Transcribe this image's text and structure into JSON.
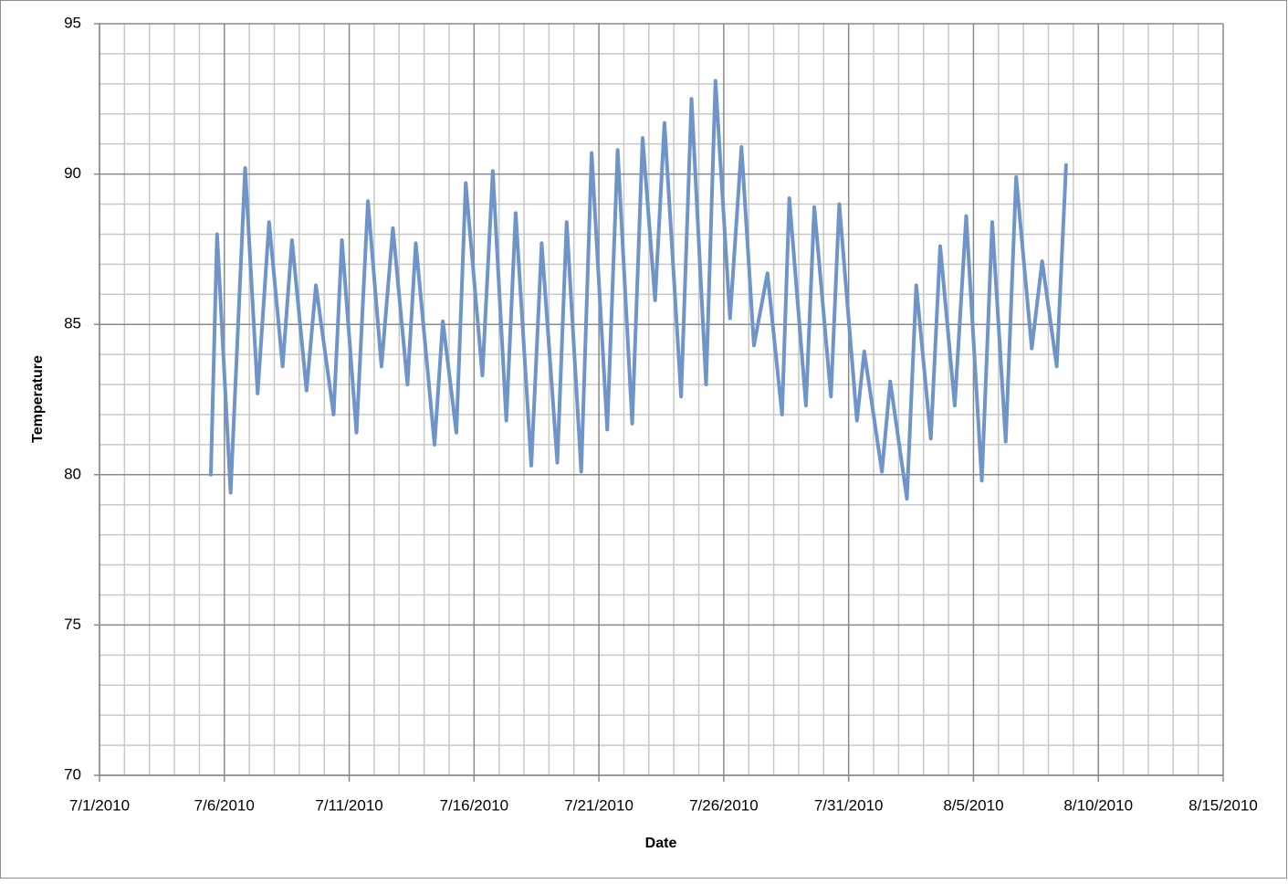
{
  "chart_data": {
    "type": "line",
    "x_label": "Date",
    "y_label": "Temperature",
    "xlim": [
      "2010-07-01T00:00",
      "2010-08-15T00:00"
    ],
    "xticks": [
      {
        "value": "2010-07-01T00:00",
        "label": "7/1/2010"
      },
      {
        "value": "2010-07-06T00:00",
        "label": "7/6/2010"
      },
      {
        "value": "2010-07-11T00:00",
        "label": "7/11/2010"
      },
      {
        "value": "2010-07-16T00:00",
        "label": "7/16/2010"
      },
      {
        "value": "2010-07-21T00:00",
        "label": "7/21/2010"
      },
      {
        "value": "2010-07-26T00:00",
        "label": "7/26/2010"
      },
      {
        "value": "2010-07-31T00:00",
        "label": "7/31/2010"
      },
      {
        "value": "2010-08-05T00:00",
        "label": "8/5/2010"
      },
      {
        "value": "2010-08-10T00:00",
        "label": "8/10/2010"
      },
      {
        "value": "2010-08-15T00:00",
        "label": "8/15/2010"
      }
    ],
    "ylim": [
      70,
      95
    ],
    "yticks": [
      70,
      75,
      80,
      85,
      90,
      95
    ],
    "grid": true,
    "minor_divisions": 5,
    "x": [
      "2010-07-05T11:00",
      "2010-07-05T17:00",
      "2010-07-06T06:00",
      "2010-07-06T20:00",
      "2010-07-07T08:00",
      "2010-07-07T19:00",
      "2010-07-08T08:00",
      "2010-07-08T17:00",
      "2010-07-09T07:00",
      "2010-07-09T16:00",
      "2010-07-10T09:00",
      "2010-07-10T17:00",
      "2010-07-11T07:00",
      "2010-07-11T18:00",
      "2010-07-12T07:00",
      "2010-07-12T18:00",
      "2010-07-13T08:00",
      "2010-07-13T16:00",
      "2010-07-14T10:00",
      "2010-07-14T18:00",
      "2010-07-15T07:00",
      "2010-07-15T16:00",
      "2010-07-16T08:00",
      "2010-07-16T18:00",
      "2010-07-17T07:00",
      "2010-07-17T16:00",
      "2010-07-18T07:00",
      "2010-07-18T17:00",
      "2010-07-19T08:00",
      "2010-07-19T17:00",
      "2010-07-20T07:00",
      "2010-07-20T17:00",
      "2010-07-21T08:00",
      "2010-07-21T18:00",
      "2010-07-22T08:00",
      "2010-07-22T18:00",
      "2010-07-23T06:00",
      "2010-07-23T15:00",
      "2010-07-24T07:00",
      "2010-07-24T17:00",
      "2010-07-25T07:00",
      "2010-07-25T16:00",
      "2010-07-26T06:00",
      "2010-07-26T17:00",
      "2010-07-27T05:00",
      "2010-07-27T18:00",
      "2010-07-28T08:00",
      "2010-07-28T15:00",
      "2010-07-29T07:00",
      "2010-07-29T15:00",
      "2010-07-30T07:00",
      "2010-07-30T15:00",
      "2010-07-31T08:00",
      "2010-07-31T15:00",
      "2010-08-01T08:00",
      "2010-08-01T16:00",
      "2010-08-02T08:00",
      "2010-08-02T17:00",
      "2010-08-03T07:00",
      "2010-08-03T16:00",
      "2010-08-04T06:00",
      "2010-08-04T17:00",
      "2010-08-05T08:00",
      "2010-08-05T18:00",
      "2010-08-06T07:00",
      "2010-08-06T17:00",
      "2010-08-07T08:00",
      "2010-08-07T18:00",
      "2010-08-08T08:00",
      "2010-08-08T17:00"
    ],
    "series": [
      {
        "name": "Temperature",
        "color": "#6f94c9",
        "values": [
          80.0,
          88.0,
          79.4,
          90.2,
          82.7,
          88.4,
          83.6,
          87.8,
          82.8,
          86.3,
          82.0,
          87.8,
          81.4,
          89.1,
          83.6,
          88.2,
          83.0,
          87.7,
          81.0,
          85.1,
          81.4,
          89.7,
          83.3,
          90.1,
          81.8,
          88.7,
          80.3,
          87.7,
          80.4,
          88.4,
          80.1,
          90.7,
          81.5,
          90.8,
          81.7,
          91.2,
          85.8,
          91.7,
          82.6,
          92.5,
          83.0,
          93.1,
          85.2,
          90.9,
          84.3,
          86.7,
          82.0,
          89.2,
          82.3,
          88.9,
          82.6,
          89.0,
          81.8,
          84.1,
          80.1,
          83.1,
          79.2,
          86.3,
          81.2,
          87.6,
          82.3,
          88.6,
          79.8,
          88.4,
          81.1,
          89.9,
          84.2,
          87.1,
          83.6,
          90.3
        ]
      }
    ]
  }
}
